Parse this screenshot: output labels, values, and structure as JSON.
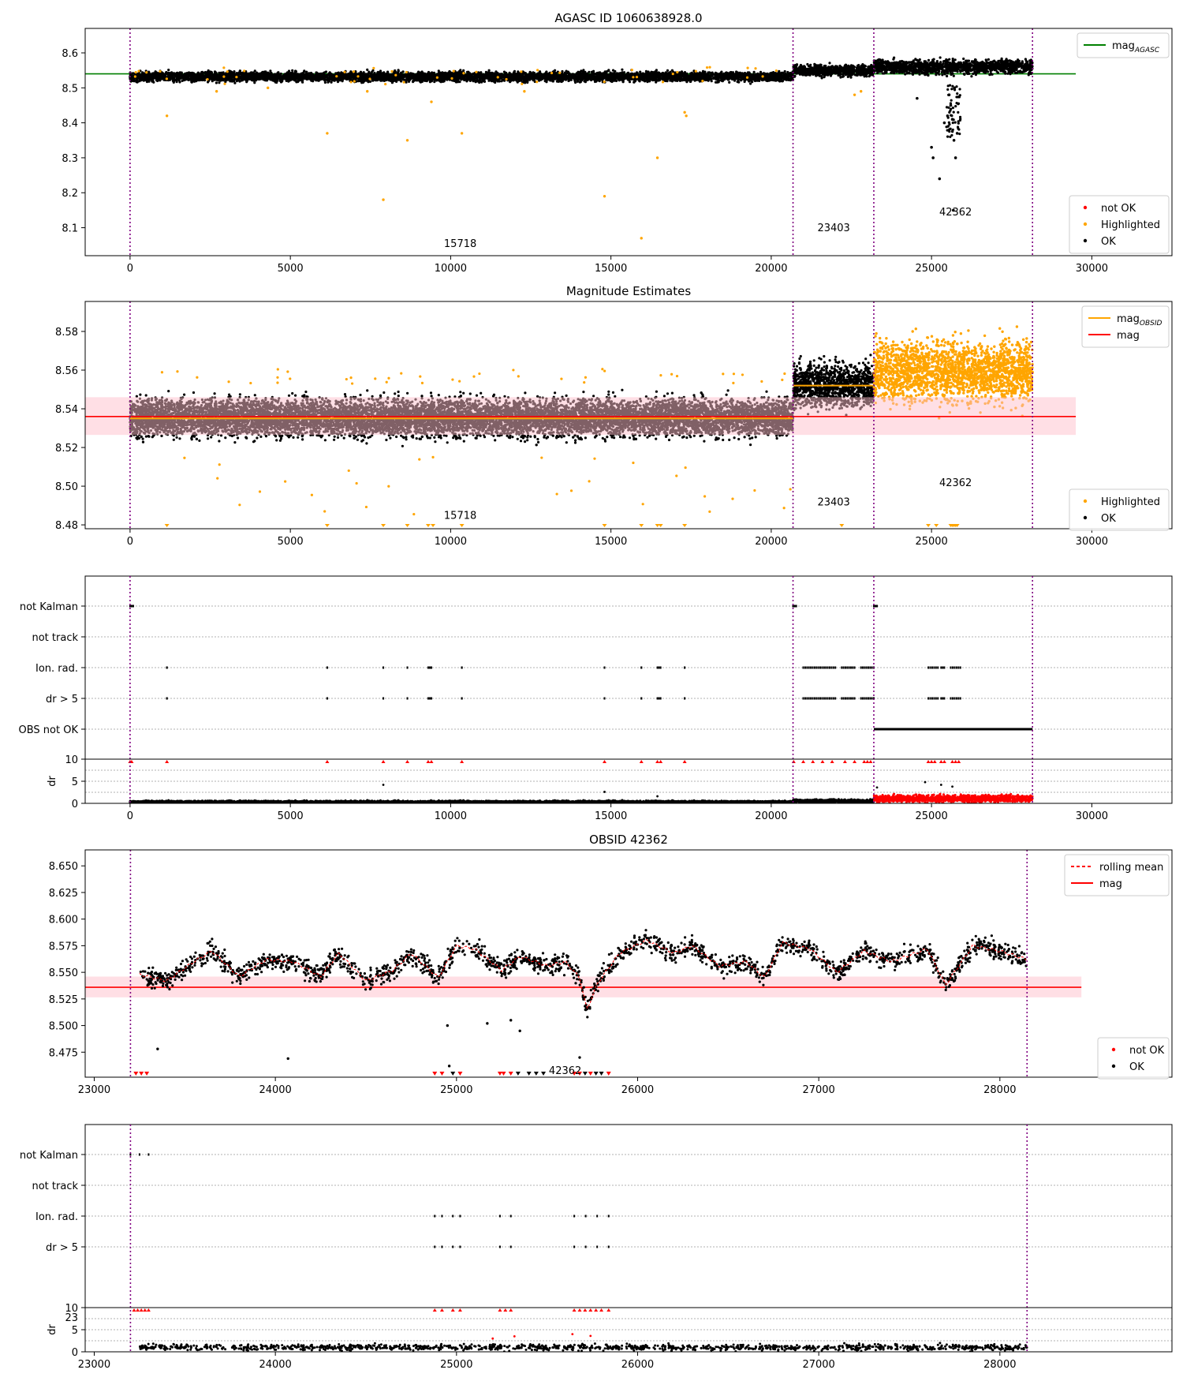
{
  "figure": {
    "agasc_id": "AGASC ID 1060638928.0",
    "colors": {
      "ok": "#000000",
      "not_ok": "#ff0000",
      "highlighted": "#ffa500",
      "mag_agasc": "#008000",
      "mag": "#ff0000",
      "mag_band": "#ffc0cb",
      "obs_boundary": "#800080",
      "grid": "#b0b0b0"
    }
  },
  "chart_data": [
    {
      "id": "agasc",
      "type": "scatter",
      "title": "AGASC ID 1060638928.0",
      "xlim": [
        -1400,
        32500
      ],
      "ylim": [
        8.02,
        8.67
      ],
      "xticks": [
        0,
        5000,
        10000,
        15000,
        20000,
        25000,
        30000
      ],
      "yticks": [
        8.1,
        8.2,
        8.3,
        8.4,
        8.5,
        8.6
      ],
      "obs_boundaries": [
        0,
        20680,
        23200,
        28150
      ],
      "obs_labels": [
        {
          "text": "15718",
          "x": 10300,
          "y": 8.045
        },
        {
          "text": "23403",
          "x": 21950,
          "y": 8.09
        },
        {
          "text": "42362",
          "x": 25750,
          "y": 8.135
        }
      ],
      "mag_agasc": {
        "value": 8.54,
        "x_range": [
          -1400,
          29500
        ]
      },
      "segments": [
        {
          "x_range": [
            0,
            20680
          ],
          "center": 8.532,
          "spread": 0.012,
          "color": "ok"
        },
        {
          "x_range": [
            20680,
            23200
          ],
          "center": 8.55,
          "spread": 0.014,
          "color": "ok"
        },
        {
          "x_range": [
            23200,
            28150
          ],
          "center": 8.56,
          "spread": 0.018,
          "color": "ok"
        }
      ],
      "outliers": [
        {
          "x": 1150,
          "y": 8.42
        },
        {
          "x": 6150,
          "y": 8.37
        },
        {
          "x": 7900,
          "y": 8.18
        },
        {
          "x": 8650,
          "y": 8.35
        },
        {
          "x": 9400,
          "y": 8.46
        },
        {
          "x": 10350,
          "y": 8.37
        },
        {
          "x": 14800,
          "y": 8.19
        },
        {
          "x": 15950,
          "y": 8.07
        },
        {
          "x": 16450,
          "y": 8.3
        },
        {
          "x": 17300,
          "y": 8.43
        },
        {
          "x": 17350,
          "y": 8.42
        },
        {
          "x": 2700,
          "y": 8.49
        },
        {
          "x": 4300,
          "y": 8.5
        },
        {
          "x": 7400,
          "y": 8.49
        },
        {
          "x": 12300,
          "y": 8.49
        },
        {
          "x": 22600,
          "y": 8.48
        },
        {
          "x": 22800,
          "y": 8.49
        }
      ],
      "dip": [
        {
          "x": 24550,
          "y": 8.47
        },
        {
          "x": 25000,
          "y": 8.33
        },
        {
          "x": 25050,
          "y": 8.3
        },
        {
          "x": 25250,
          "y": 8.24
        },
        {
          "x": 25400,
          "y": 8.4
        },
        {
          "x": 25500,
          "y": 8.42
        },
        {
          "x": 25600,
          "y": 8.45
        },
        {
          "x": 25650,
          "y": 8.41
        },
        {
          "x": 25700,
          "y": 8.35
        },
        {
          "x": 25750,
          "y": 8.3
        },
        {
          "x": 25800,
          "y": 8.37
        },
        {
          "x": 25550,
          "y": 8.48
        },
        {
          "x": 25720,
          "y": 8.5
        },
        {
          "x": 25680,
          "y": 8.15
        }
      ],
      "legend": {
        "position": "lower right",
        "entries": [
          "not OK",
          "Highlighted",
          "OK"
        ]
      },
      "legend_upper": {
        "position": "upper right",
        "entries": [
          "mag_AGASC"
        ]
      }
    },
    {
      "id": "estimates",
      "type": "scatter",
      "title": "Magnitude Estimates",
      "xlim": [
        -1400,
        32500
      ],
      "ylim": [
        8.478,
        8.5955
      ],
      "xticks": [
        0,
        5000,
        10000,
        15000,
        20000,
        25000,
        30000
      ],
      "yticks": [
        8.48,
        8.5,
        8.52,
        8.54,
        8.56,
        8.58
      ],
      "obs_boundaries": [
        0,
        20680,
        23200,
        28150
      ],
      "obs_labels": [
        {
          "text": "15718",
          "x": 10300,
          "y": 8.483
        },
        {
          "text": "23403",
          "x": 21950,
          "y": 8.49
        },
        {
          "text": "42362",
          "x": 25750,
          "y": 8.5
        }
      ],
      "mag": {
        "value": 8.536,
        "band": [
          8.5265,
          8.546
        ],
        "x_range": [
          -1400,
          29500
        ]
      },
      "mag_obsid": [
        {
          "x_range": [
            0,
            20680
          ],
          "value": 8.535
        },
        {
          "x_range": [
            20680,
            23200
          ],
          "value": 8.552
        },
        {
          "x_range": [
            23200,
            28150
          ],
          "value": 8.5595
        }
      ],
      "segments": [
        {
          "x_range": [
            0,
            20680
          ],
          "center": 8.5355,
          "spread": 0.0085,
          "color": "ok"
        },
        {
          "x_range": [
            20680,
            23200
          ],
          "center": 8.552,
          "spread": 0.01,
          "color": "ok"
        },
        {
          "x_range": [
            23200,
            28150
          ],
          "center": 8.5595,
          "spread": 0.014,
          "color": "highlighted"
        }
      ],
      "legend": {
        "position": "lower right",
        "entries": [
          "Highlighted",
          "OK"
        ]
      },
      "legend_upper": {
        "position": "upper right",
        "entries": [
          "mag_OBSID",
          "mag"
        ]
      }
    },
    {
      "id": "flags",
      "type": "scatter",
      "xlim": [
        -1400,
        32500
      ],
      "xticks": [
        0,
        5000,
        10000,
        15000,
        20000,
        25000,
        30000
      ],
      "obs_boundaries": [
        0,
        20680,
        23200,
        28150
      ],
      "flag_rows": [
        "not Kalman",
        "not track",
        "Ion. rad.",
        "dr > 5",
        "OBS not OK"
      ],
      "flag_events": {
        "not Kalman": [
          [
            0,
            100
          ],
          [
            20680,
            20780
          ],
          [
            23200,
            23300
          ]
        ],
        "not track": [],
        "Ion. rad.": [
          [
            1150,
            1150
          ],
          [
            6150,
            6150
          ],
          [
            7900,
            7900
          ],
          [
            8650,
            8650
          ],
          [
            9300,
            9400
          ],
          [
            10350,
            10350
          ],
          [
            14800,
            14800
          ],
          [
            15950,
            15950
          ],
          [
            16450,
            16550
          ],
          [
            17300,
            17300
          ],
          [
            21000,
            22000
          ],
          [
            22200,
            22600
          ],
          [
            22800,
            23200
          ],
          [
            24900,
            25200
          ],
          [
            25300,
            25400
          ],
          [
            25600,
            25900
          ]
        ],
        "dr > 5": [
          [
            1150,
            1150
          ],
          [
            6150,
            6150
          ],
          [
            7900,
            7900
          ],
          [
            8650,
            8650
          ],
          [
            9300,
            9400
          ],
          [
            10350,
            10350
          ],
          [
            14800,
            14800
          ],
          [
            15950,
            15950
          ],
          [
            16450,
            16550
          ],
          [
            17300,
            17300
          ],
          [
            21000,
            22000
          ],
          [
            22200,
            22600
          ],
          [
            22800,
            23200
          ],
          [
            24900,
            25200
          ],
          [
            25300,
            25400
          ],
          [
            25600,
            25900
          ]
        ],
        "OBS not OK": [
          [
            23200,
            28150
          ]
        ]
      },
      "dr": {
        "ylabel": "dr",
        "ylim": [
          0,
          10
        ],
        "yticks": [
          0,
          5,
          10
        ],
        "segments": [
          {
            "x_range": [
              0,
              20680
            ],
            "center": 0.3,
            "spread": 0.25,
            "color": "ok"
          },
          {
            "x_range": [
              20680,
              23200
            ],
            "center": 0.5,
            "spread": 0.35,
            "color": "ok"
          },
          {
            "x_range": [
              23200,
              28150
            ],
            "center": 1.1,
            "spread": 0.7,
            "color": "not_ok"
          }
        ],
        "capped_x": [
          0,
          50,
          1150,
          6150,
          7900,
          8650,
          9300,
          9400,
          10350,
          14800,
          15950,
          16450,
          16550,
          17300,
          20700,
          21000,
          21300,
          21600,
          21900,
          22300,
          22600,
          22900,
          23000,
          23100,
          24900,
          25000,
          25100,
          25300,
          25400,
          25650,
          25750,
          25850
        ]
      }
    },
    {
      "id": "obsid",
      "type": "line",
      "title": "OBSID 42362",
      "xlim": [
        22950,
        28950
      ],
      "ylim": [
        8.4515,
        8.665
      ],
      "xticks": [
        23000,
        24000,
        25000,
        26000,
        27000,
        28000
      ],
      "yticks": [
        8.475,
        8.5,
        8.525,
        8.55,
        8.575,
        8.6,
        8.625,
        8.65
      ],
      "obs_boundaries": [
        23200,
        28150
      ],
      "obs_labels": [
        {
          "text": "42362",
          "x": 25600,
          "y": 8.4545
        }
      ],
      "mag": {
        "value": 8.536,
        "band": [
          8.5265,
          8.546
        ],
        "x_range": [
          22950,
          28450
        ]
      },
      "rolling_mean_knots": [
        {
          "x": 23250,
          "y": 8.548
        },
        {
          "x": 23400,
          "y": 8.542
        },
        {
          "x": 23550,
          "y": 8.56
        },
        {
          "x": 23650,
          "y": 8.57
        },
        {
          "x": 23800,
          "y": 8.546
        },
        {
          "x": 23950,
          "y": 8.562
        },
        {
          "x": 24100,
          "y": 8.56
        },
        {
          "x": 24250,
          "y": 8.546
        },
        {
          "x": 24350,
          "y": 8.568
        },
        {
          "x": 24500,
          "y": 8.542
        },
        {
          "x": 24650,
          "y": 8.552
        },
        {
          "x": 24750,
          "y": 8.568
        },
        {
          "x": 24900,
          "y": 8.545
        },
        {
          "x": 25000,
          "y": 8.575
        },
        {
          "x": 25100,
          "y": 8.572
        },
        {
          "x": 25250,
          "y": 8.552
        },
        {
          "x": 25350,
          "y": 8.565
        },
        {
          "x": 25500,
          "y": 8.556
        },
        {
          "x": 25600,
          "y": 8.56
        },
        {
          "x": 25680,
          "y": 8.545
        },
        {
          "x": 25720,
          "y": 8.515
        },
        {
          "x": 25780,
          "y": 8.54
        },
        {
          "x": 25900,
          "y": 8.568
        },
        {
          "x": 26050,
          "y": 8.58
        },
        {
          "x": 26200,
          "y": 8.568
        },
        {
          "x": 26300,
          "y": 8.575
        },
        {
          "x": 26450,
          "y": 8.556
        },
        {
          "x": 26600,
          "y": 8.56
        },
        {
          "x": 26700,
          "y": 8.545
        },
        {
          "x": 26800,
          "y": 8.578
        },
        {
          "x": 26950,
          "y": 8.572
        },
        {
          "x": 27100,
          "y": 8.55
        },
        {
          "x": 27250,
          "y": 8.57
        },
        {
          "x": 27400,
          "y": 8.56
        },
        {
          "x": 27600,
          "y": 8.572
        },
        {
          "x": 27700,
          "y": 8.538
        },
        {
          "x": 27850,
          "y": 8.575
        },
        {
          "x": 28000,
          "y": 8.57
        },
        {
          "x": 28150,
          "y": 8.562
        }
      ],
      "low_points": [
        {
          "x": 23350,
          "y": 8.478
        },
        {
          "x": 24070,
          "y": 8.469
        },
        {
          "x": 24950,
          "y": 8.5
        },
        {
          "x": 25170,
          "y": 8.502
        },
        {
          "x": 25300,
          "y": 8.505
        },
        {
          "x": 25350,
          "y": 8.495
        },
        {
          "x": 25680,
          "y": 8.47
        },
        {
          "x": 24960,
          "y": 8.462
        }
      ],
      "capped_markers": [
        {
          "x": 23230,
          "c": "not_ok"
        },
        {
          "x": 23260,
          "c": "not_ok"
        },
        {
          "x": 23290,
          "c": "not_ok"
        },
        {
          "x": 24880,
          "c": "not_ok"
        },
        {
          "x": 24920,
          "c": "not_ok"
        },
        {
          "x": 24980,
          "c": "ok"
        },
        {
          "x": 25020,
          "c": "not_ok"
        },
        {
          "x": 25240,
          "c": "not_ok"
        },
        {
          "x": 25260,
          "c": "not_ok"
        },
        {
          "x": 25300,
          "c": "not_ok"
        },
        {
          "x": 25340,
          "c": "ok"
        },
        {
          "x": 25400,
          "c": "ok"
        },
        {
          "x": 25440,
          "c": "ok"
        },
        {
          "x": 25480,
          "c": "ok"
        },
        {
          "x": 25650,
          "c": "not_ok"
        },
        {
          "x": 25680,
          "c": "not_ok"
        },
        {
          "x": 25710,
          "c": "ok"
        },
        {
          "x": 25740,
          "c": "not_ok"
        },
        {
          "x": 25770,
          "c": "ok"
        },
        {
          "x": 25800,
          "c": "ok"
        },
        {
          "x": 25840,
          "c": "not_ok"
        }
      ],
      "legend": {
        "position": "lower right",
        "entries": [
          "not OK",
          "OK"
        ]
      },
      "legend_upper": {
        "position": "upper right",
        "entries": [
          "rolling mean",
          "mag"
        ]
      }
    },
    {
      "id": "obsid_flags",
      "type": "scatter",
      "xlim": [
        22950,
        28950
      ],
      "xticks": [
        23000,
        24000,
        25000,
        26000,
        27000,
        28000
      ],
      "obs_boundaries": [
        23200,
        28150
      ],
      "flag_rows": [
        "not Kalman",
        "not track",
        "Ion. rad.",
        "dr > 5"
      ],
      "flag_events": {
        "not Kalman": [
          [
            23200,
            23300
          ]
        ],
        "not track": [],
        "Ion. rad.": [
          [
            24880,
            24920
          ],
          [
            24980,
            25020
          ],
          [
            25240,
            25300
          ],
          [
            25650,
            25840
          ]
        ],
        "dr > 5": [
          [
            24880,
            24920
          ],
          [
            24980,
            25020
          ],
          [
            25240,
            25300
          ],
          [
            25650,
            25840
          ]
        ]
      },
      "dr": {
        "ylabel": "dr",
        "ylim": [
          0,
          10
        ],
        "yticks": [
          0,
          5,
          10
        ],
        "segments": [
          {
            "x_range": [
              23250,
              28150
            ],
            "center": 1.0,
            "spread": 0.6,
            "color": "ok"
          }
        ],
        "capped_x": [
          23220,
          23240,
          23260,
          23280,
          23300,
          24880,
          24920,
          24980,
          25020,
          25240,
          25270,
          25300,
          25650,
          25680,
          25710,
          25740,
          25770,
          25800,
          25840
        ],
        "tall_points": [
          {
            "x": 25200,
            "y": 3.0
          },
          {
            "x": 25320,
            "y": 3.5
          },
          {
            "x": 25640,
            "y": 4.0
          },
          {
            "x": 25740,
            "y": 3.6
          }
        ]
      },
      "stray_label": "23"
    }
  ]
}
